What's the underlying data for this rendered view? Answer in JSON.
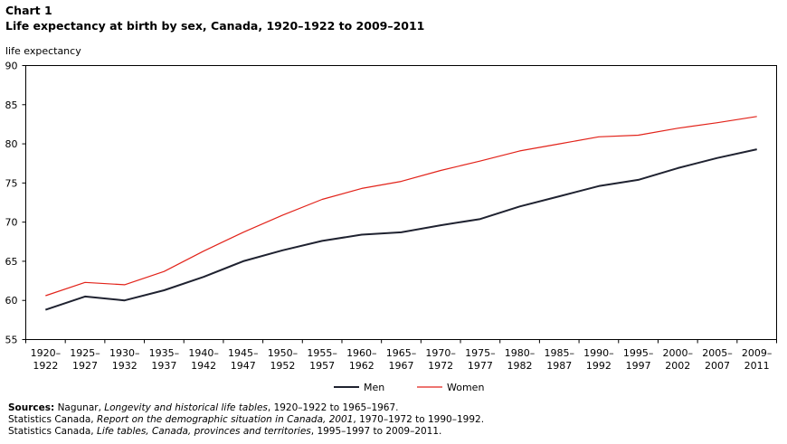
{
  "header": {
    "chart_number": "Chart 1",
    "title": "Life expectancy at birth by sex, Canada, 1920–1922  to 2009–2011"
  },
  "chart_data": {
    "type": "line",
    "title": "Life expectancy at birth by sex, Canada, 1920–1922  to 2009–2011",
    "ylabel": "life expectancy",
    "xlabel": "",
    "ylim": [
      55,
      90
    ],
    "yticks": [
      55,
      60,
      65,
      70,
      75,
      80,
      85,
      90
    ],
    "grid": false,
    "legend_position": "bottom-center",
    "categories": [
      [
        "1920–",
        "1922"
      ],
      [
        "1925–",
        "1927"
      ],
      [
        "1930–",
        "1932"
      ],
      [
        "1935–",
        "1937"
      ],
      [
        "1940–",
        "1942"
      ],
      [
        "1945–",
        "1947"
      ],
      [
        "1950–",
        "1952"
      ],
      [
        "1955–",
        "1957"
      ],
      [
        "1960–",
        "1962"
      ],
      [
        "1965–",
        "1967"
      ],
      [
        "1970–",
        "1972"
      ],
      [
        "1975–",
        "1977"
      ],
      [
        "1980–",
        "1982"
      ],
      [
        "1985–",
        "1987"
      ],
      [
        "1990–",
        "1992"
      ],
      [
        "1995–",
        "1997"
      ],
      [
        "2000–",
        "2002"
      ],
      [
        "2005–",
        "2007"
      ],
      [
        "2009–",
        "2011"
      ]
    ],
    "series": [
      {
        "name": "Men",
        "color": "#1f2230",
        "values": [
          58.8,
          60.5,
          60.0,
          61.3,
          63.0,
          65.0,
          66.4,
          67.6,
          68.4,
          68.7,
          69.6,
          70.4,
          72.0,
          73.3,
          74.6,
          75.4,
          76.9,
          78.2,
          79.3
        ]
      },
      {
        "name": "Women",
        "color": "#e2231a",
        "values": [
          60.6,
          62.3,
          62.0,
          63.7,
          66.3,
          68.7,
          70.9,
          72.9,
          74.3,
          75.2,
          76.6,
          77.8,
          79.1,
          80.0,
          80.9,
          81.1,
          82.0,
          82.7,
          83.5
        ]
      }
    ]
  },
  "sources": {
    "label": "Sources:",
    "line1": [
      " Nagunar, ",
      "Longevity and historical life tables",
      ", 1920–1922 to 1965–1967."
    ],
    "line2": [
      "Statistics Canada, ",
      "Report on the demographic situation in Canada, 2001",
      ", 1970–1972 to 1990–1992."
    ],
    "line3": [
      "Statistics Canada, ",
      "Life tables, Canada, provinces and territories",
      ", 1995–1997 to 2009–2011."
    ]
  }
}
